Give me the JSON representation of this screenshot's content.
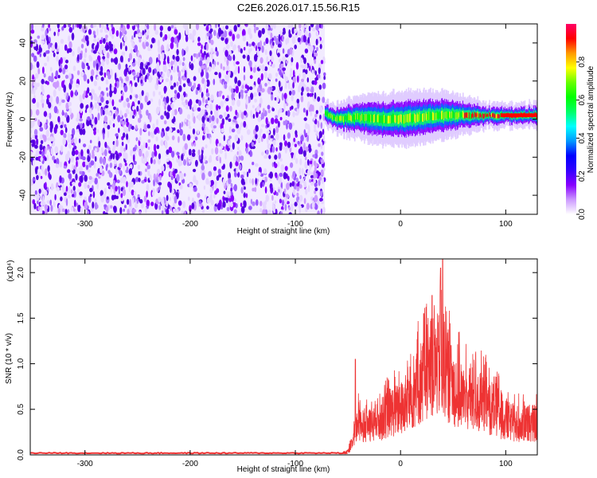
{
  "title": "C2E6.2026.017.15.56.R15",
  "chart_data": [
    {
      "type": "heatmap",
      "xlabel": "Height of straight line (km)",
      "ylabel": "Frequency (Hz)",
      "xlim": [
        -352,
        130
      ],
      "ylim": [
        -50,
        50
      ],
      "xticks": [
        -300,
        -200,
        -100,
        0,
        100
      ],
      "yticks": [
        -40,
        -20,
        0,
        20,
        40
      ],
      "noise_region_x": [
        -352,
        -72
      ],
      "signal_region_x": [
        -72,
        130
      ],
      "signal_centerline": [
        {
          "x": -72,
          "f": 3
        },
        {
          "x": -60,
          "f": 0
        },
        {
          "x": -40,
          "f": 1
        },
        {
          "x": -20,
          "f": 0
        },
        {
          "x": 0,
          "f": 0
        },
        {
          "x": 20,
          "f": 1
        },
        {
          "x": 40,
          "f": 2
        },
        {
          "x": 60,
          "f": 2
        },
        {
          "x": 80,
          "f": 2
        },
        {
          "x": 100,
          "f": 2
        },
        {
          "x": 130,
          "f": 2
        }
      ],
      "colorbar": {
        "label": "Normalized spectral amplitude",
        "range": [
          0.0,
          1.0
        ],
        "ticks": [
          0.0,
          0.2,
          0.4,
          0.6,
          0.8
        ],
        "colors": [
          "#ffffff",
          "#cc99ff",
          "#8800ff",
          "#3300ff",
          "#0000ff",
          "#0099ff",
          "#00ffff",
          "#00ff66",
          "#00ff00",
          "#66ff00",
          "#ffff00",
          "#ff9900",
          "#ff0000",
          "#ff0066"
        ]
      }
    },
    {
      "type": "line",
      "xlabel": "Height of straight line (km)",
      "ylabel": "SNR (10 * v/v)",
      "scale_label": "(x10⁴)",
      "xlim": [
        -352,
        130
      ],
      "ylim": [
        0,
        2.15
      ],
      "xticks": [
        -300,
        -200,
        -100,
        0,
        100
      ],
      "yticks": [
        0.0,
        0.5,
        1.0,
        1.5,
        2.0
      ],
      "series": [
        {
          "color": "#ee3333",
          "baseline": 0.02,
          "envelope": [
            {
              "x": -352,
              "y": 0.02
            },
            {
              "x": -60,
              "y": 0.02
            },
            {
              "x": -50,
              "y": 0.05
            },
            {
              "x": -45,
              "y": 0.25
            },
            {
              "x": -40,
              "y": 0.6
            },
            {
              "x": -30,
              "y": 0.5
            },
            {
              "x": -20,
              "y": 0.6
            },
            {
              "x": -10,
              "y": 0.75
            },
            {
              "x": 0,
              "y": 0.8
            },
            {
              "x": 10,
              "y": 1.0
            },
            {
              "x": 20,
              "y": 1.3
            },
            {
              "x": 30,
              "y": 1.5
            },
            {
              "x": 40,
              "y": 1.6
            },
            {
              "x": 50,
              "y": 1.2
            },
            {
              "x": 60,
              "y": 1.0
            },
            {
              "x": 70,
              "y": 0.95
            },
            {
              "x": 80,
              "y": 0.9
            },
            {
              "x": 90,
              "y": 0.8
            },
            {
              "x": 100,
              "y": 0.6
            },
            {
              "x": 110,
              "y": 0.55
            },
            {
              "x": 130,
              "y": 0.55
            }
          ],
          "peaks": [
            {
              "x": -43,
              "y": 1.05
            },
            {
              "x": 15,
              "y": 1.05
            },
            {
              "x": 22,
              "y": 1.55
            },
            {
              "x": 30,
              "y": 1.75
            },
            {
              "x": 38,
              "y": 2.05
            },
            {
              "x": 40,
              "y": 2.15
            },
            {
              "x": 48,
              "y": 1.2
            }
          ]
        }
      ]
    }
  ]
}
